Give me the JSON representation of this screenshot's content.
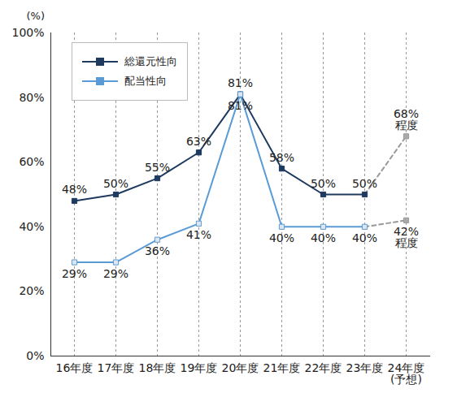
{
  "chart_data": {
    "type": "line",
    "ylabel": "(%)",
    "categories": [
      "16年度",
      "17年度",
      "18年度",
      "19年度",
      "20年度",
      "21年度",
      "22年度",
      "23年度",
      "24年度\n(予想)"
    ],
    "projected": [
      false,
      false,
      false,
      false,
      false,
      false,
      false,
      false,
      true
    ],
    "series": [
      {
        "name": "総還元性向",
        "color": "#1f3a5f",
        "marker": "square",
        "line_style": "solid",
        "values": [
          48,
          50,
          55,
          63,
          81,
          58,
          50,
          50,
          68
        ],
        "value_labels": [
          "48%",
          "50%",
          "55%",
          "63%",
          "81%",
          "58%",
          "50%",
          "50%",
          "68%\n程度"
        ]
      },
      {
        "name": "配当性向",
        "color": "#5b9bd5",
        "marker": "square",
        "line_style": "solid",
        "values": [
          29,
          29,
          36,
          41,
          81,
          40,
          40,
          40,
          42
        ],
        "value_labels": [
          "29%",
          "29%",
          "36%",
          "41%",
          "81%",
          "40%",
          "40%",
          "40%",
          "42%\n程度"
        ]
      }
    ],
    "ylim": [
      0,
      100
    ],
    "yticks": [
      {
        "value": 0,
        "label": "0%"
      },
      {
        "value": 20,
        "label": "20%"
      },
      {
        "value": 40,
        "label": "40%"
      },
      {
        "value": 60,
        "label": "60%"
      },
      {
        "value": 80,
        "label": "80%"
      },
      {
        "value": 100,
        "label": "100%"
      }
    ],
    "grid": "x",
    "legend": "top-left",
    "data_labels": true
  }
}
